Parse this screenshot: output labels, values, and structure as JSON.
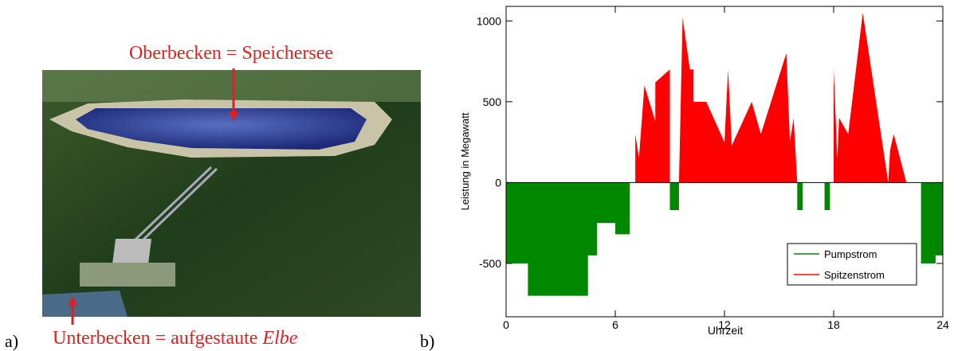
{
  "figure": {
    "panel_a_label": "a)",
    "panel_b_label": "b)",
    "photo": {
      "upper_label": "Oberbecken = Speichersee",
      "lower_label": "Unterbecken = aufgestaute",
      "lower_label_italic": "Elbe"
    }
  },
  "chart_data": {
    "type": "area",
    "xlabel": "Uhrzeit",
    "ylabel": "Leistung in Megawatt",
    "xlim": [
      0,
      24
    ],
    "xticks": [
      0,
      6,
      12,
      18,
      24
    ],
    "ylim": [
      -830,
      1090
    ],
    "yticks": [
      -500,
      0,
      500,
      1000
    ],
    "legend": "lower right",
    "series": [
      {
        "name": "Pumpstrom",
        "color": "#008800",
        "x": [
          0,
          1.2,
          1.2,
          4.5,
          4.5,
          5,
          5,
          6,
          6,
          6.8,
          6.8,
          9,
          9,
          9.5,
          9.5,
          16,
          16,
          16.3,
          16.3,
          17.5,
          17.5,
          17.8,
          17.8,
          22.8,
          22.8,
          23.6,
          23.6,
          24
        ],
        "values": [
          -500,
          -500,
          -700,
          -700,
          -450,
          -450,
          -250,
          -250,
          -320,
          -320,
          0,
          0,
          -170,
          -170,
          0,
          0,
          -170,
          -170,
          0,
          0,
          -170,
          -170,
          0,
          0,
          -500,
          -500,
          -450,
          -450
        ]
      },
      {
        "name": "Spitzenstrom",
        "color": "#ff0000",
        "x": [
          0,
          7.1,
          7.1,
          7.3,
          7.6,
          8.2,
          8.2,
          9,
          9,
          9.5,
          9.7,
          10.1,
          10.3,
          10.3,
          11,
          12,
          12.2,
          12.4,
          13.5,
          14,
          15.4,
          15.6,
          15.8,
          16,
          18,
          18,
          18.2,
          18.3,
          18.8,
          19.6,
          21,
          21.1,
          21.3,
          22,
          24
        ],
        "values": [
          0,
          0,
          300,
          150,
          600,
          380,
          620,
          700,
          0,
          0,
          1020,
          700,
          700,
          500,
          500,
          250,
          700,
          230,
          500,
          300,
          800,
          250,
          400,
          0,
          0,
          700,
          150,
          400,
          300,
          1050,
          0,
          200,
          300,
          0,
          0
        ]
      }
    ]
  }
}
